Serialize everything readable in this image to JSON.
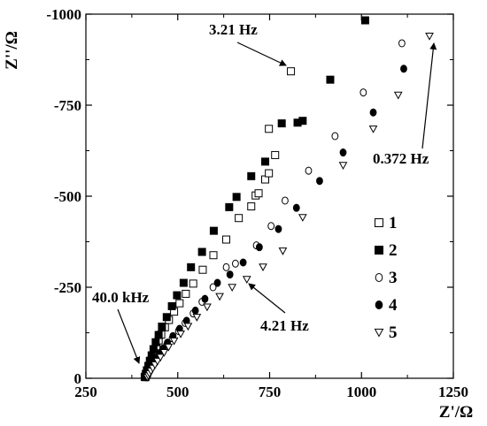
{
  "chart_data": {
    "type": "scatter",
    "xlabel": "Z'/Ω",
    "ylabel": "Z''/Ω",
    "xlim": [
      250,
      1250
    ],
    "ylim": [
      0,
      -1000
    ],
    "x_ticks": [
      "250",
      "500",
      "750",
      "1000",
      "1250"
    ],
    "y_ticks": [
      "0",
      "-250",
      "-500",
      "-750",
      "-1000"
    ],
    "x_tick_values": [
      250,
      500,
      750,
      1000,
      1250
    ],
    "y_tick_values": [
      0,
      -250,
      -500,
      -750,
      -1000
    ],
    "grid": false,
    "legend_position": "right",
    "series": [
      {
        "name": "1",
        "marker": "square-open",
        "points": [
          [
            412,
            -3
          ],
          [
            414,
            -8
          ],
          [
            417,
            -15
          ],
          [
            420,
            -23
          ],
          [
            423,
            -32
          ],
          [
            426,
            -41
          ],
          [
            429,
            -51
          ],
          [
            433,
            -62
          ],
          [
            437,
            -74
          ],
          [
            442,
            -88
          ],
          [
            448,
            -104
          ],
          [
            455,
            -120
          ],
          [
            465,
            -140
          ],
          [
            476,
            -160
          ],
          [
            490,
            -183
          ],
          [
            505,
            -206
          ],
          [
            522,
            -232
          ],
          [
            542,
            -260
          ],
          [
            568,
            -298
          ],
          [
            597,
            -338
          ],
          [
            632,
            -381
          ],
          [
            666,
            -440
          ],
          [
            700,
            -472
          ],
          [
            712,
            -502
          ],
          [
            720,
            -508
          ],
          [
            738,
            -546
          ],
          [
            748,
            -563
          ],
          [
            765,
            -613
          ],
          [
            748,
            -685
          ],
          [
            808,
            -843
          ]
        ]
      },
      {
        "name": "2",
        "marker": "square-filled",
        "points": [
          [
            410,
            -4
          ],
          [
            413,
            -12
          ],
          [
            416,
            -22
          ],
          [
            420,
            -34
          ],
          [
            424,
            -48
          ],
          [
            429,
            -63
          ],
          [
            434,
            -80
          ],
          [
            440,
            -99
          ],
          [
            448,
            -119
          ],
          [
            457,
            -142
          ],
          [
            470,
            -168
          ],
          [
            484,
            -198
          ],
          [
            498,
            -228
          ],
          [
            516,
            -262
          ],
          [
            536,
            -305
          ],
          [
            566,
            -347
          ],
          [
            598,
            -405
          ],
          [
            640,
            -470
          ],
          [
            660,
            -498
          ],
          [
            700,
            -555
          ],
          [
            738,
            -595
          ],
          [
            783,
            -700
          ],
          [
            826,
            -702
          ],
          [
            840,
            -707
          ],
          [
            915,
            -820
          ],
          [
            1010,
            -983
          ]
        ]
      },
      {
        "name": "3",
        "marker": "circle-open",
        "points": [
          [
            415,
            -3
          ],
          [
            418,
            -8
          ],
          [
            421,
            -15
          ],
          [
            425,
            -22
          ],
          [
            430,
            -31
          ],
          [
            436,
            -40
          ],
          [
            442,
            -50
          ],
          [
            449,
            -62
          ],
          [
            458,
            -76
          ],
          [
            470,
            -92
          ],
          [
            485,
            -110
          ],
          [
            502,
            -130
          ],
          [
            520,
            -152
          ],
          [
            542,
            -178
          ],
          [
            566,
            -210
          ],
          [
            596,
            -250
          ],
          [
            632,
            -305
          ],
          [
            657,
            -315
          ],
          [
            714,
            -365
          ],
          [
            754,
            -418
          ],
          [
            792,
            -488
          ],
          [
            856,
            -570
          ],
          [
            928,
            -665
          ],
          [
            1005,
            -785
          ],
          [
            1110,
            -920
          ]
        ]
      },
      {
        "name": "4",
        "marker": "circle-filled",
        "points": [
          [
            413,
            -3
          ],
          [
            416,
            -9
          ],
          [
            420,
            -16
          ],
          [
            424,
            -24
          ],
          [
            429,
            -33
          ],
          [
            435,
            -43
          ],
          [
            442,
            -54
          ],
          [
            450,
            -67
          ],
          [
            460,
            -82
          ],
          [
            472,
            -98
          ],
          [
            487,
            -116
          ],
          [
            505,
            -136
          ],
          [
            524,
            -158
          ],
          [
            548,
            -186
          ],
          [
            574,
            -218
          ],
          [
            608,
            -262
          ],
          [
            642,
            -285
          ],
          [
            678,
            -318
          ],
          [
            722,
            -360
          ],
          [
            774,
            -410
          ],
          [
            823,
            -468
          ],
          [
            886,
            -542
          ],
          [
            950,
            -620
          ],
          [
            1032,
            -730
          ],
          [
            1115,
            -850
          ]
        ]
      },
      {
        "name": "5",
        "marker": "triangle-down-open",
        "points": [
          [
            417,
            -3
          ],
          [
            420,
            -7
          ],
          [
            423,
            -13
          ],
          [
            427,
            -20
          ],
          [
            432,
            -28
          ],
          [
            438,
            -37
          ],
          [
            445,
            -47
          ],
          [
            453,
            -58
          ],
          [
            463,
            -71
          ],
          [
            475,
            -86
          ],
          [
            490,
            -103
          ],
          [
            508,
            -122
          ],
          [
            528,
            -143
          ],
          [
            552,
            -168
          ],
          [
            580,
            -196
          ],
          [
            614,
            -225
          ],
          [
            648,
            -250
          ],
          [
            688,
            -272
          ],
          [
            732,
            -306
          ],
          [
            786,
            -350
          ],
          [
            840,
            -442
          ],
          [
            950,
            -585
          ],
          [
            1032,
            -685
          ],
          [
            1100,
            -778
          ],
          [
            1185,
            -940
          ]
        ]
      }
    ],
    "annotations": [
      {
        "text": "3.21 Hz",
        "at": [
          808,
          -843
        ]
      },
      {
        "text": "0.372 Hz",
        "at": [
          1185,
          -940
        ]
      },
      {
        "text": "40.0 kHz",
        "at": [
          410,
          -3
        ]
      },
      {
        "text": "4.21 Hz",
        "at": [
          670,
          -258
        ]
      }
    ]
  }
}
